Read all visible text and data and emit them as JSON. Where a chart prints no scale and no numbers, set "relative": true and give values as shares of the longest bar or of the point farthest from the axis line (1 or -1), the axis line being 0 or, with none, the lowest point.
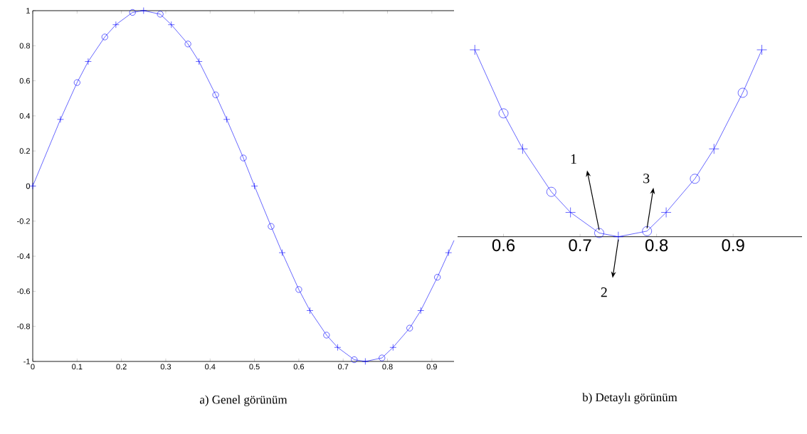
{
  "chart_data": [
    {
      "type": "line",
      "title": "a) Genel görünüm",
      "xlim": [
        0,
        0.95
      ],
      "ylim": [
        -1,
        1
      ],
      "xticks": [
        0,
        0.1,
        0.2,
        0.3,
        0.4,
        0.5,
        0.6,
        0.7,
        0.8,
        0.9
      ],
      "yticks": [
        -1,
        -0.8,
        -0.6,
        -0.4,
        -0.2,
        0,
        0.2,
        0.4,
        0.6,
        0.8,
        1
      ],
      "series": [
        {
          "marker": "none",
          "color": "#0000ff",
          "x": [
            0,
            0.0625,
            0.1,
            0.125,
            0.1625,
            0.1875,
            0.225,
            0.25,
            0.2875,
            0.3125,
            0.35,
            0.375,
            0.4125,
            0.4375,
            0.475,
            0.5,
            0.5375,
            0.5625,
            0.6,
            0.625,
            0.6625,
            0.6875,
            0.725,
            0.75,
            0.7875,
            0.8125,
            0.85,
            0.875,
            0.9125,
            0.9375,
            0.95
          ],
          "values": [
            0,
            0.38,
            0.59,
            0.71,
            0.85,
            0.92,
            0.99,
            1,
            0.98,
            0.92,
            0.81,
            0.71,
            0.52,
            0.38,
            0.16,
            0,
            -0.23,
            -0.38,
            -0.59,
            -0.71,
            -0.85,
            -0.92,
            -0.99,
            -1,
            -0.98,
            -0.92,
            -0.81,
            -0.71,
            -0.52,
            -0.38,
            -0.31
          ]
        },
        {
          "type": "scatter",
          "marker": "cross",
          "color": "#0000ff",
          "x": [
            0,
            0.0625,
            0.125,
            0.1875,
            0.25,
            0.3125,
            0.375,
            0.4375,
            0.5,
            0.5625,
            0.625,
            0.6875,
            0.75,
            0.8125,
            0.875,
            0.9375
          ],
          "values": [
            0,
            0.38,
            0.71,
            0.92,
            1,
            0.92,
            0.71,
            0.38,
            0,
            -0.38,
            -0.71,
            -0.92,
            -1,
            -0.92,
            -0.71,
            -0.38
          ]
        },
        {
          "type": "scatter",
          "marker": "circle",
          "color": "#0000ff",
          "x": [
            0.1,
            0.1625,
            0.225,
            0.2875,
            0.35,
            0.4125,
            0.475,
            0.5375,
            0.6,
            0.6625,
            0.725,
            0.7875,
            0.85,
            0.9125
          ],
          "values": [
            0.59,
            0.85,
            0.99,
            0.98,
            0.81,
            0.52,
            0.16,
            -0.23,
            -0.59,
            -0.85,
            -0.99,
            -0.98,
            -0.81,
            -0.52
          ]
        }
      ]
    },
    {
      "type": "line",
      "title": "b) Detaylı görünüm",
      "xlim": [
        0.54,
        0.99
      ],
      "relative": true,
      "xticks": [
        0.6,
        0.7,
        0.8,
        0.9
      ],
      "annotations": [
        {
          "text": "1",
          "x": 0.725,
          "y": 0.02
        },
        {
          "text": "2",
          "x": 0.75,
          "y": 0
        },
        {
          "text": "3",
          "x": 0.7875,
          "y": 0.03
        }
      ],
      "series": [
        {
          "marker": "none",
          "color": "#0000ff",
          "x": [
            0.5625,
            0.6,
            0.625,
            0.6625,
            0.6875,
            0.725,
            0.75,
            0.7875,
            0.8125,
            0.85,
            0.875,
            0.9125,
            0.9375
          ],
          "values": [
            1,
            0.66,
            0.47,
            0.24,
            0.13,
            0.02,
            0,
            0.03,
            0.13,
            0.31,
            0.47,
            0.77,
            1
          ]
        },
        {
          "type": "scatter",
          "marker": "cross",
          "color": "#0000ff",
          "x": [
            0.5625,
            0.625,
            0.6875,
            0.75,
            0.8125,
            0.875,
            0.9375
          ],
          "values": [
            1,
            0.47,
            0.13,
            0,
            0.13,
            0.47,
            1
          ]
        },
        {
          "type": "scatter",
          "marker": "circle",
          "color": "#0000ff",
          "x": [
            0.6,
            0.6625,
            0.725,
            0.7875,
            0.85,
            0.9125
          ],
          "values": [
            0.66,
            0.24,
            0.02,
            0.03,
            0.31,
            0.77
          ]
        }
      ]
    }
  ]
}
